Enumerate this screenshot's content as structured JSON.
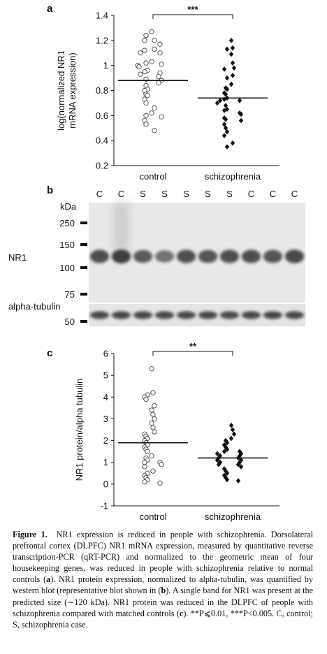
{
  "panels": {
    "a": {
      "letter": "a"
    },
    "b": {
      "letter": "b"
    },
    "c": {
      "letter": "c"
    }
  },
  "chart_data": [
    {
      "type": "scatter",
      "panel": "a",
      "ylabel_line1": "log(normalized NR1",
      "ylabel_line2": "mRNA expression)",
      "ylim": [
        0.2,
        1.4
      ],
      "yticks": [
        "0.2",
        "0.4",
        "0.6",
        "0.8",
        "1",
        "1.2",
        "1.4"
      ],
      "categories": [
        "control",
        "schizophrenia"
      ],
      "significance": "***",
      "series": [
        {
          "name": "control",
          "marker": "open-circle",
          "mean": 0.88,
          "values": [
            1.27,
            1.24,
            1.2,
            1.2,
            1.17,
            1.13,
            1.12,
            1.1,
            1.1,
            1.03,
            1.02,
            1.01,
            1.0,
            0.99,
            0.96,
            0.95,
            0.94,
            0.93,
            0.91,
            0.89,
            0.88,
            0.86,
            0.84,
            0.81,
            0.8,
            0.77,
            0.76,
            0.73,
            0.7,
            0.66,
            0.62,
            0.6,
            0.59,
            0.56,
            0.53,
            0.48
          ]
        },
        {
          "name": "schizophrenia",
          "marker": "filled-diamond",
          "mean": 0.74,
          "values": [
            1.2,
            1.14,
            1.13,
            1.09,
            1.02,
            0.98,
            0.97,
            0.92,
            0.9,
            0.85,
            0.82,
            0.81,
            0.78,
            0.77,
            0.74,
            0.73,
            0.72,
            0.72,
            0.7,
            0.68,
            0.65,
            0.64,
            0.62,
            0.61,
            0.58,
            0.57,
            0.56,
            0.53,
            0.5,
            0.47,
            0.44,
            0.38,
            0.35
          ]
        }
      ]
    },
    {
      "type": "scatter",
      "panel": "c",
      "ylabel": "NR1 protein/alpha tubulin",
      "ylim": [
        -1,
        6
      ],
      "yticks": [
        "-1",
        "0",
        "1",
        "2",
        "3",
        "4",
        "5",
        "6"
      ],
      "categories": [
        "control",
        "schizophrenia"
      ],
      "significance": "**",
      "series": [
        {
          "name": "control",
          "marker": "open-circle",
          "mean": 1.9,
          "values": [
            5.3,
            4.2,
            4.1,
            4.0,
            3.9,
            3.6,
            3.4,
            3.2,
            3.0,
            2.8,
            2.6,
            2.4,
            2.3,
            2.2,
            2.1,
            2.0,
            1.9,
            1.8,
            1.7,
            1.6,
            1.5,
            1.3,
            1.2,
            1.1,
            1.0,
            1.0,
            0.9,
            0.8,
            0.6,
            0.5,
            0.4,
            0.3,
            0.2,
            0.1,
            0.05
          ]
        },
        {
          "name": "schizophrenia",
          "marker": "filled-diamond",
          "mean": 1.2,
          "values": [
            2.7,
            2.5,
            2.3,
            2.1,
            2.0,
            1.9,
            1.8,
            1.7,
            1.6,
            1.5,
            1.5,
            1.4,
            1.4,
            1.3,
            1.3,
            1.2,
            1.2,
            1.1,
            1.1,
            1.0,
            1.0,
            0.9,
            0.9,
            0.8,
            0.7,
            0.6,
            0.5,
            0.4,
            0.3,
            0.2,
            0.15
          ]
        }
      ]
    }
  ],
  "blot": {
    "kda_label": "kDa",
    "lanes": [
      "C",
      "C",
      "S",
      "S",
      "S",
      "S",
      "S",
      "C",
      "C",
      "C"
    ],
    "markers": [
      "250",
      "150",
      "100",
      "75"
    ],
    "band_label": "NR1",
    "tubulin_label": "alpha-tubulin",
    "tubulin_marker": "50",
    "nr1_band_intensity": [
      0.85,
      1.0,
      0.75,
      0.55,
      0.85,
      0.8,
      0.85,
      0.85,
      0.8,
      0.9
    ]
  },
  "caption": {
    "figure_label": "Figure 1.",
    "lines": [
      "NR1 expression is reduced in people with schizophrenia. Dorsolateral prefrontal cortex (DLPFC) NR1 mRNA expression, measured by quantitative reverse transcription-PCR (qRT-PCR) and normalized to the geometric mean of four housekeeping genes, was reduced in people with schizophrenia relative to normal controls (",
      "a",
      "). NR1 protein expression, normalized to alpha-tubulin, was quantified by western blot (representative blot shown in (",
      "b",
      "). A single band for NR1 was present at the predicted size (∼120 kDa). NR1 protein was reduced in the DLPFC of people with schizophrenia compared with matched controls (",
      "c",
      "). **P⩽0.01, ***P<0.005. C, control; S, schizophrenia case."
    ]
  }
}
